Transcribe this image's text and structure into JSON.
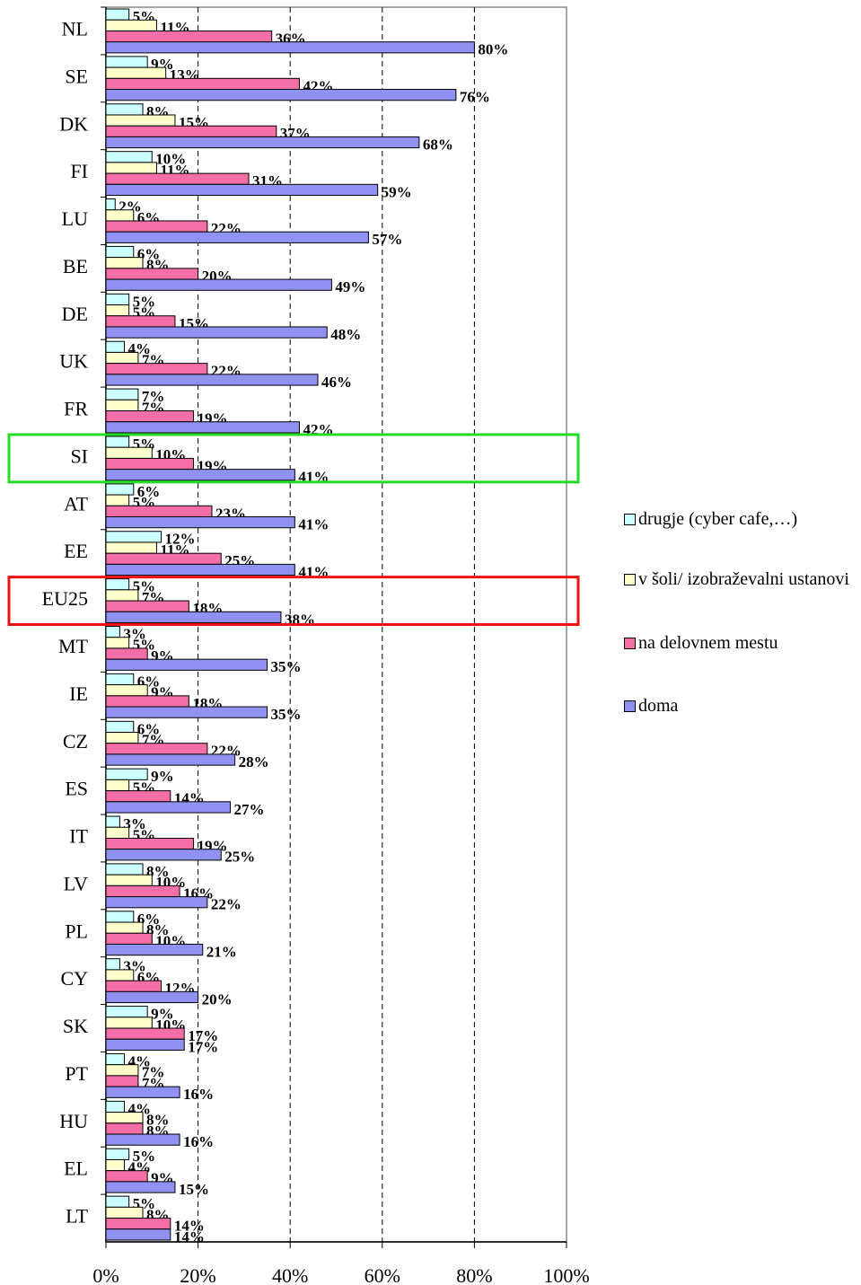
{
  "chart_data": {
    "type": "hbar",
    "categories": [
      "NL",
      "SE",
      "DK",
      "FI",
      "LU",
      "BE",
      "DE",
      "UK",
      "FR",
      "SI",
      "AT",
      "EE",
      "EU25",
      "MT",
      "IE",
      "CZ",
      "ES",
      "IT",
      "LV",
      "PL",
      "CY",
      "SK",
      "PT",
      "HU",
      "EL",
      "LT"
    ],
    "series": [
      {
        "name": "drugje (cyber cafe,…)",
        "color": "#ccffff",
        "values": [
          5,
          9,
          8,
          10,
          2,
          6,
          5,
          4,
          7,
          5,
          6,
          12,
          5,
          3,
          6,
          6,
          9,
          3,
          8,
          6,
          3,
          9,
          4,
          4,
          5,
          5
        ],
        "value_labels": [
          "5%",
          "9%",
          "8%",
          "10%",
          "2%",
          "6%",
          "5%",
          "4%",
          "7%",
          "5%",
          "6%",
          "12%",
          "5%",
          "3%",
          "6%",
          "6%",
          "9%",
          "3%",
          "8%",
          "6%",
          "3%",
          "9%",
          "4%",
          "4%",
          "5%",
          "5%"
        ]
      },
      {
        "name": "v šoli/ izobraževalni ustanovi",
        "color": "#ffffcc",
        "values": [
          11,
          13,
          15,
          11,
          6,
          8,
          5,
          7,
          7,
          10,
          5,
          11,
          7,
          5,
          9,
          7,
          5,
          5,
          10,
          8,
          6,
          10,
          7,
          8,
          4,
          8
        ],
        "value_labels": [
          "11%",
          "13%",
          "15%",
          "11%",
          "6%",
          "8%",
          "5%",
          "7%",
          "7%",
          "10%",
          "5%",
          "11%",
          "7%",
          "5%",
          "9%",
          "7%",
          "5%",
          "5%",
          "10%",
          "8%",
          "6%",
          "10%",
          "7%",
          "8%",
          "4%",
          "8%"
        ]
      },
      {
        "name": "na delovnem mestu",
        "color": "#f46ea8",
        "values": [
          36,
          42,
          37,
          31,
          22,
          20,
          15,
          22,
          19,
          19,
          23,
          25,
          18,
          9,
          18,
          22,
          14,
          19,
          16,
          10,
          12,
          17,
          7,
          8,
          9,
          14
        ],
        "value_labels": [
          "36%",
          "42%",
          "37%",
          "31%",
          "22%",
          "20%",
          "15%",
          "22%",
          "19%",
          "19%",
          "23%",
          "25%",
          "18%",
          "9%",
          "18%",
          "22%",
          "14%",
          "19%",
          "16%",
          "10%",
          "12%",
          "17%",
          "7%",
          "8%",
          "9%",
          "14%"
        ]
      },
      {
        "name": "doma",
        "color": "#9191f2",
        "values": [
          80,
          76,
          68,
          59,
          57,
          49,
          48,
          46,
          42,
          41,
          41,
          41,
          38,
          35,
          35,
          28,
          27,
          25,
          22,
          21,
          20,
          17,
          16,
          16,
          15,
          14
        ],
        "value_labels": [
          "80%",
          "76%",
          "68%",
          "59%",
          "57%",
          "49%",
          "48%",
          "46%",
          "42%",
          "41%",
          "41%",
          "41%",
          "38%",
          "35%",
          "35%",
          "28%",
          "27%",
          "25%",
          "22%",
          "21%",
          "20%",
          "17%",
          "16%",
          "16%",
          "15%",
          "14%"
        ]
      }
    ],
    "xlim": [
      0,
      100
    ],
    "xticks": [
      {
        "value": 0,
        "label": "0%"
      },
      {
        "value": 20,
        "label": "20%"
      },
      {
        "value": 40,
        "label": "40%"
      },
      {
        "value": 60,
        "label": "60%"
      },
      {
        "value": 80,
        "label": "80%"
      },
      {
        "value": 100,
        "label": "100%"
      }
    ],
    "grid": true,
    "legend": "right"
  }
}
